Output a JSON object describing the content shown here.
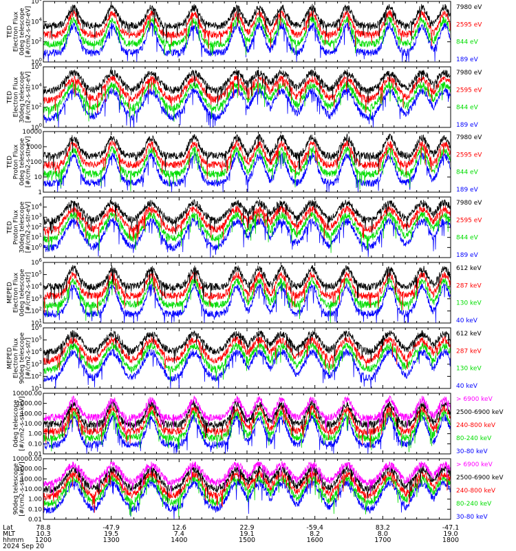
{
  "colors": {
    "blue": "#0000ff",
    "red": "#ff0000",
    "green": "#00dd00",
    "black": "#000000",
    "magenta": "#ff00ff"
  },
  "chart_data": [
    {
      "type": "line",
      "ylabel": [
        "TED",
        "Electron Flux",
        "0deg telescope",
        "[#/cm2-s-str-eV]"
      ],
      "yscale": "log",
      "ylim": [
        1,
        1000000
      ],
      "ytick_labels": [
        "10^0",
        "10^2",
        "10^4",
        "10^6"
      ],
      "series": [
        {
          "name": "7980 eV",
          "color": "black"
        },
        {
          "name": "2595 eV",
          "color": "red"
        },
        {
          "name": "844 eV",
          "color": "green"
        },
        {
          "name": "189 eV",
          "color": "blue"
        }
      ]
    },
    {
      "type": "line",
      "ylabel": [
        "TED",
        "Electron Flux",
        "30deg telescope",
        "[#/cm2-s-str-eV]"
      ],
      "yscale": "log",
      "ylim": [
        1,
        1000000
      ],
      "ytick_labels": [
        "10^0",
        "10^2",
        "10^4",
        "10^6"
      ],
      "series": [
        {
          "name": "7980 eV",
          "color": "black"
        },
        {
          "name": "2595 eV",
          "color": "red"
        },
        {
          "name": "844 eV",
          "color": "green"
        },
        {
          "name": "189 eV",
          "color": "blue"
        }
      ]
    },
    {
      "type": "line",
      "ylabel": [
        "TED",
        "Proton Flux",
        "0deg telescope",
        "[#/cm2-s-str-eV]"
      ],
      "yscale": "log",
      "ylim": [
        1,
        10000
      ],
      "ytick_labels": [
        "1",
        "10",
        "100",
        "1000",
        "10000"
      ],
      "series": [
        {
          "name": "7980 eV",
          "color": "black"
        },
        {
          "name": "2595 eV",
          "color": "red"
        },
        {
          "name": "844 eV",
          "color": "green"
        },
        {
          "name": "189 eV",
          "color": "blue"
        }
      ]
    },
    {
      "type": "line",
      "ylabel": [
        "TED",
        "Proton Flux",
        "30deg telescope",
        "[#/cm2-s-str-eV]"
      ],
      "yscale": "log",
      "ylim": [
        0.1,
        100000
      ],
      "ytick_labels": [
        "10^0",
        "10^1",
        "10^2",
        "10^3",
        "10^4"
      ],
      "series": [
        {
          "name": "7980 eV",
          "color": "black"
        },
        {
          "name": "2595 eV",
          "color": "red"
        },
        {
          "name": "844 eV",
          "color": "green"
        },
        {
          "name": "189 eV",
          "color": "blue"
        }
      ]
    },
    {
      "type": "line",
      "ylabel": [
        "MEPED",
        "Electron Flux",
        "0deg telescope",
        "[#/cm2-s-str]"
      ],
      "yscale": "log",
      "ylim": [
        10,
        1000000
      ],
      "ytick_labels": [
        "10^1",
        "10^2",
        "10^3",
        "10^4",
        "10^5",
        "10^6"
      ],
      "series": [
        {
          "name": "612 keV",
          "color": "black"
        },
        {
          "name": "287 keV",
          "color": "red"
        },
        {
          "name": "130 keV",
          "color": "green"
        },
        {
          "name": "40 keV",
          "color": "blue"
        }
      ]
    },
    {
      "type": "line",
      "ylabel": [
        "MEPED",
        "Electron Flux",
        "90deg telescope",
        "[#/cm2-s-str]"
      ],
      "yscale": "log",
      "ylim": [
        10,
        1000000
      ],
      "ytick_labels": [
        "10^1",
        "10^2",
        "10^3",
        "10^4",
        "10^5",
        "10^6"
      ],
      "series": [
        {
          "name": "612 keV",
          "color": "black"
        },
        {
          "name": "287 keV",
          "color": "red"
        },
        {
          "name": "130 keV",
          "color": "green"
        },
        {
          "name": "40 keV",
          "color": "blue"
        }
      ]
    },
    {
      "type": "line",
      "ylabel": [
        "0deg telescope",
        "[#/cm2-s-str-keV]"
      ],
      "yscale": "log",
      "ylim": [
        0.01,
        10000
      ],
      "ytick_labels": [
        "0.01",
        "0.10",
        "1.00",
        "10.00",
        "100.00",
        "1000.00",
        "10000.00"
      ],
      "series": [
        {
          "name": "> 6900 keV",
          "color": "magenta"
        },
        {
          "name": "2500-6900 keV",
          "color": "black"
        },
        {
          "name": "240-800 keV",
          "color": "red"
        },
        {
          "name": "80-240 keV",
          "color": "green"
        },
        {
          "name": "30-80 keV",
          "color": "blue"
        }
      ]
    },
    {
      "type": "line",
      "ylabel": [
        "90deg telescope",
        "[#/cm2-s-str-keV]"
      ],
      "yscale": "log",
      "ylim": [
        0.01,
        10000
      ],
      "ytick_labels": [
        "0.01",
        "0.10",
        "1.00",
        "10.00",
        "100.00",
        "1000.00",
        "10000.00"
      ],
      "series": [
        {
          "name": "> 6900 keV",
          "color": "magenta"
        },
        {
          "name": "2500-6900 keV",
          "color": "black"
        },
        {
          "name": "240-800 keV",
          "color": "red"
        },
        {
          "name": "80-240 keV",
          "color": "green"
        },
        {
          "name": "30-80 keV",
          "color": "blue"
        }
      ]
    }
  ],
  "xaxis": {
    "row_labels": [
      "Lat",
      "MLT",
      "hhmm"
    ],
    "date": "2024 Sep 20",
    "ticks": [
      {
        "time": 1200,
        "lat": "78.8",
        "mlt": "10.3",
        "hhmm": "1200"
      },
      {
        "time": 1300,
        "lat": "-47.9",
        "mlt": "19.5",
        "hhmm": "1300"
      },
      {
        "time": 1400,
        "lat": "12.6",
        "mlt": "7.4",
        "hhmm": "1400"
      },
      {
        "time": 1500,
        "lat": "22.9",
        "mlt": "19.1",
        "hhmm": "1500"
      },
      {
        "time": 1600,
        "lat": "-59.4",
        "mlt": "8.2",
        "hhmm": "1600"
      },
      {
        "time": 1700,
        "lat": "83.2",
        "mlt": "8.0",
        "hhmm": "1700"
      },
      {
        "time": 1800,
        "lat": "-47.1",
        "mlt": "19.0",
        "hhmm": "1800"
      }
    ]
  }
}
